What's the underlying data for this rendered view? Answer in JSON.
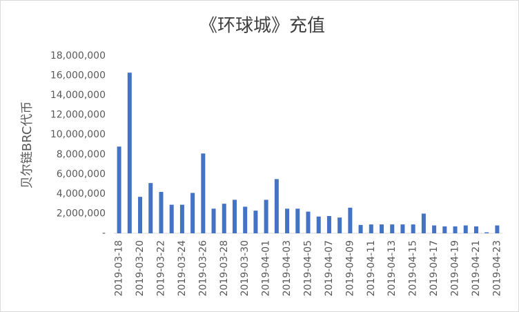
{
  "chart_data": {
    "type": "bar",
    "title": "《环球城》充值",
    "y_label": "贝尔链BRC代币",
    "categories": [
      "2019-03-18",
      null,
      "2019-03-20",
      null,
      "2019-03-22",
      null,
      "2019-03-24",
      null,
      "2019-03-26",
      null,
      "2019-03-28",
      null,
      "2019-03-30",
      null,
      "2019-04-01",
      null,
      "2019-04-03",
      null,
      "2019-04-05",
      null,
      "2019-04-07",
      null,
      "2019-04-09",
      null,
      "2019-04-11",
      null,
      "2019-04-13",
      null,
      "2019-04-15",
      null,
      "2019-04-17",
      null,
      "2019-04-19",
      null,
      "2019-04-21",
      null,
      "2019-04-23"
    ],
    "values": [
      8800000,
      16300000,
      3700000,
      5100000,
      4200000,
      2900000,
      2900000,
      4100000,
      8100000,
      2500000,
      3000000,
      3400000,
      2700000,
      2300000,
      3400000,
      5500000,
      2500000,
      2500000,
      2200000,
      1700000,
      1750000,
      1600000,
      2600000,
      850000,
      900000,
      900000,
      900000,
      900000,
      900000,
      2000000,
      800000,
      700000,
      700000,
      800000,
      700000,
      100000,
      800000
    ],
    "color": "#4472c4",
    "ylim": [
      0,
      18000000
    ],
    "yticks": [
      {
        "value": 0,
        "label": "-"
      },
      {
        "value": 2000000,
        "label": "2,000,000"
      },
      {
        "value": 4000000,
        "label": "4,000,000"
      },
      {
        "value": 6000000,
        "label": "6,000,000"
      },
      {
        "value": 8000000,
        "label": "8,000,000"
      },
      {
        "value": 10000000,
        "label": "10,000,000"
      },
      {
        "value": 12000000,
        "label": "12,000,000"
      },
      {
        "value": 14000000,
        "label": "14,000,000"
      },
      {
        "value": 16000000,
        "label": "16,000,000"
      },
      {
        "value": 18000000,
        "label": "18,000,000"
      }
    ],
    "grid": false
  }
}
